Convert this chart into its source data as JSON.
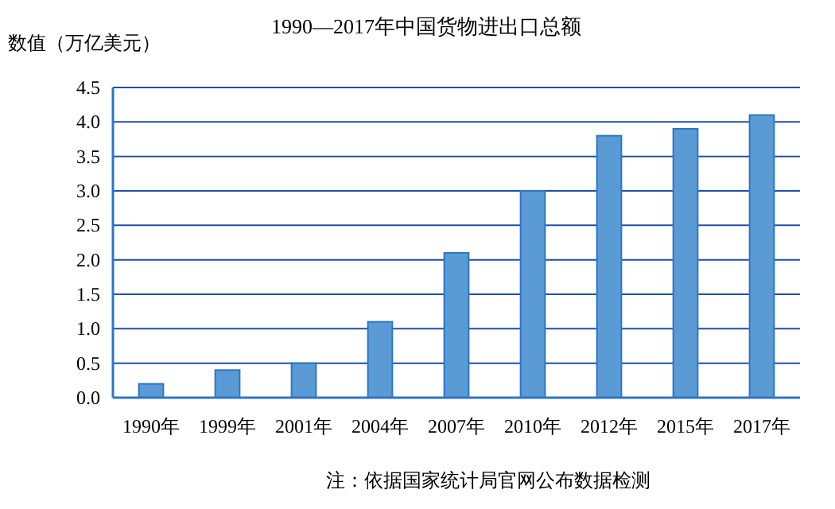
{
  "chart_data": {
    "type": "bar",
    "title": "1990—2017年中国货物进出口总额",
    "ylabel": "数值（万亿美元）",
    "categories": [
      "1990年",
      "1999年",
      "2001年",
      "2004年",
      "2007年",
      "2010年",
      "2012年",
      "2015年",
      "2017年"
    ],
    "values": [
      0.2,
      0.4,
      0.5,
      1.1,
      2.1,
      3.0,
      3.8,
      3.9,
      4.1
    ],
    "color": "#5b9bd5",
    "ylim": [
      0,
      4.5
    ],
    "yticks": [
      {
        "value": 0,
        "label": "0.0"
      },
      {
        "value": 0.5,
        "label": "0.5"
      },
      {
        "value": 1,
        "label": "1.0"
      },
      {
        "value": 1.5,
        "label": "1.5"
      },
      {
        "value": 2,
        "label": "2.0"
      },
      {
        "value": 2.5,
        "label": "2.5"
      },
      {
        "value": 3,
        "label": "3.0"
      },
      {
        "value": 3.5,
        "label": "3.5"
      },
      {
        "value": 4,
        "label": "4.0"
      },
      {
        "value": 4.5,
        "label": "4.5"
      }
    ],
    "grid": "y",
    "annotations": [
      "注：依据国家统计局官网公布数据检测"
    ]
  }
}
